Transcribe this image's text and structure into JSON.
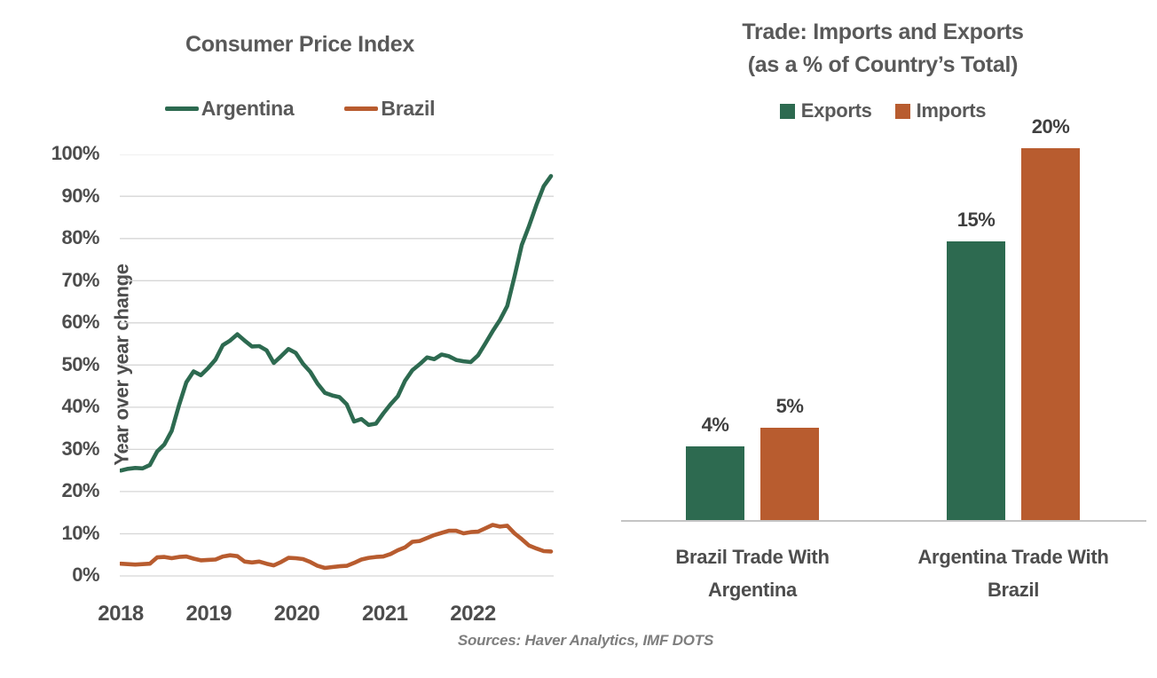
{
  "page": {
    "sources_note": "Sources: Haver Analytics, IMF DOTS"
  },
  "colors": {
    "argentina_green": "#2D6A50",
    "brazil_orange": "#B85C2F",
    "label_gray": "#4D4D4D",
    "title_gray": "#595959",
    "gridline_gray": "#D6D6D6",
    "axis_gray": "#C4C4C4",
    "sources_gray": "#7E7E7E"
  },
  "chart_data": [
    {
      "id": "cpi",
      "type": "line",
      "title": "Consumer Price Index",
      "ylabel": "Year over year change",
      "ylim": [
        0,
        100
      ],
      "ytick_step": 10,
      "ytick_labels": [
        "100%",
        "90%",
        "80%",
        "70%",
        "60%",
        "50%",
        "40%",
        "30%",
        "20%",
        "10%",
        "0%"
      ],
      "xtick_labels": [
        "2018",
        "2019",
        "2020",
        "2021",
        "2022"
      ],
      "grid": true,
      "legend_position": "top",
      "x": [
        "2018-01",
        "2018-02",
        "2018-03",
        "2018-04",
        "2018-05",
        "2018-06",
        "2018-07",
        "2018-08",
        "2018-09",
        "2018-10",
        "2018-11",
        "2018-12",
        "2019-01",
        "2019-02",
        "2019-03",
        "2019-04",
        "2019-05",
        "2019-06",
        "2019-07",
        "2019-08",
        "2019-09",
        "2019-10",
        "2019-11",
        "2019-12",
        "2020-01",
        "2020-02",
        "2020-03",
        "2020-04",
        "2020-05",
        "2020-06",
        "2020-07",
        "2020-08",
        "2020-09",
        "2020-10",
        "2020-11",
        "2020-12",
        "2021-01",
        "2021-02",
        "2021-03",
        "2021-04",
        "2021-05",
        "2021-06",
        "2021-07",
        "2021-08",
        "2021-09",
        "2021-10",
        "2021-11",
        "2021-12",
        "2022-01",
        "2022-02",
        "2022-03",
        "2022-04",
        "2022-05",
        "2022-06",
        "2022-07",
        "2022-08",
        "2022-09",
        "2022-10",
        "2022-11",
        "2022-12"
      ],
      "series": [
        {
          "name": "Argentina",
          "color_key": "argentina_green",
          "values": [
            25.0,
            25.4,
            25.6,
            25.5,
            26.3,
            29.5,
            31.2,
            34.4,
            40.5,
            45.9,
            48.5,
            47.6,
            49.3,
            51.3,
            54.7,
            55.8,
            57.3,
            55.8,
            54.4,
            54.5,
            53.5,
            50.5,
            52.1,
            53.8,
            52.9,
            50.3,
            48.4,
            45.6,
            43.4,
            42.8,
            42.4,
            40.7,
            36.6,
            37.2,
            35.8,
            36.1,
            38.5,
            40.7,
            42.6,
            46.3,
            48.8,
            50.2,
            51.8,
            51.4,
            52.5,
            52.1,
            51.2,
            50.9,
            50.7,
            52.3,
            55.1,
            58.0,
            60.7,
            64.0,
            71.0,
            78.5,
            83.0,
            88.0,
            92.4,
            94.8
          ]
        },
        {
          "name": "Brazil",
          "color_key": "brazil_orange",
          "values": [
            2.9,
            2.8,
            2.7,
            2.8,
            2.9,
            4.4,
            4.5,
            4.2,
            4.5,
            4.6,
            4.1,
            3.7,
            3.8,
            3.9,
            4.6,
            4.9,
            4.7,
            3.4,
            3.2,
            3.4,
            2.9,
            2.5,
            3.3,
            4.3,
            4.2,
            4.0,
            3.3,
            2.4,
            1.9,
            2.1,
            2.3,
            2.4,
            3.1,
            3.9,
            4.3,
            4.5,
            4.6,
            5.2,
            6.1,
            6.8,
            8.1,
            8.3,
            9.0,
            9.7,
            10.2,
            10.7,
            10.7,
            10.1,
            10.4,
            10.5,
            11.3,
            12.1,
            11.7,
            11.9,
            10.1,
            8.7,
            7.2,
            6.5,
            5.9,
            5.8
          ]
        }
      ]
    },
    {
      "id": "trade",
      "type": "bar",
      "title_line1": "Trade: Imports and Exports",
      "title_line2": "(as a % of Country’s Total)",
      "categories": [
        "Brazil Trade With Argentina",
        "Argentina Trade With Brazil"
      ],
      "categories_wrapped": [
        [
          "Brazil Trade With",
          "Argentina"
        ],
        [
          "Argentina Trade With",
          "Brazil"
        ]
      ],
      "ylim": [
        0,
        20
      ],
      "grid": false,
      "legend_position": "top",
      "series": [
        {
          "name": "Exports",
          "color_key": "argentina_green",
          "values": [
            4,
            15
          ],
          "data_labels": [
            "4%",
            "15%"
          ]
        },
        {
          "name": "Imports",
          "color_key": "brazil_orange",
          "values": [
            5,
            20
          ],
          "data_labels": [
            "5%",
            "20%"
          ]
        }
      ]
    }
  ]
}
